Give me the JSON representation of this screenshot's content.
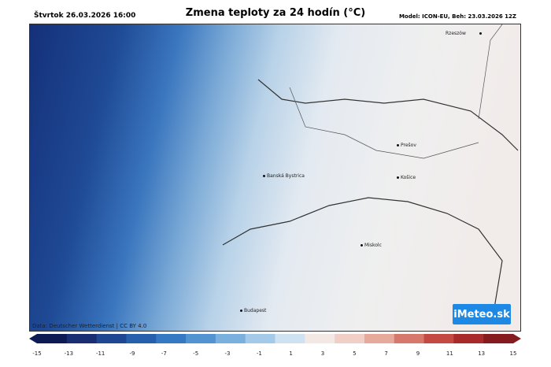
{
  "header": {
    "date": "Štvrtok 26.03.2026 16:00",
    "title": "Zmena teploty za 24 hodín (°C)",
    "model": "Model: ICON-EU, Beh: 23.03.2026 12Z"
  },
  "map": {
    "attribution": "Data: Deutscher Wetterdienst | CC BY 4.0",
    "logo": "iMeteo.sk",
    "cities": [
      {
        "name": "Rzeszów"
      },
      {
        "name": "Prešov"
      },
      {
        "name": "Košice"
      },
      {
        "name": "Banská Bystrica"
      },
      {
        "name": "Miskolc"
      },
      {
        "name": "Budapest"
      }
    ]
  },
  "colorbar": {
    "ticks": [
      "-15",
      "-13",
      "-11",
      "-9",
      "-7",
      "-5",
      "-3",
      "-1",
      "1",
      "3",
      "5",
      "7",
      "9",
      "11",
      "13",
      "15"
    ],
    "colors": [
      "#0d1a54",
      "#182d72",
      "#1f4691",
      "#2660ad",
      "#3579c2",
      "#5294d1",
      "#79b0de",
      "#a3cae8",
      "#cfe2f1",
      "#f4e8e4",
      "#f0cfc6",
      "#e6a99c",
      "#d7786d",
      "#c34942",
      "#a82a2a",
      "#861b1f"
    ]
  }
}
